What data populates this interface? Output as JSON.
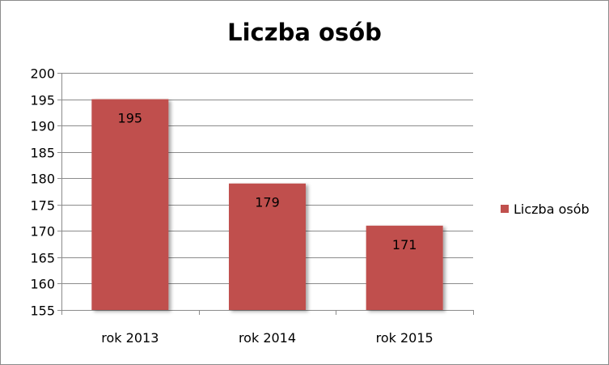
{
  "chart_data": {
    "type": "bar",
    "title": "Liczba osób",
    "categories": [
      "rok 2013",
      "rok 2014",
      "rok 2015"
    ],
    "series": [
      {
        "name": "Liczba osób",
        "values": [
          195,
          179,
          171
        ],
        "color": "#c0504d"
      }
    ],
    "data_labels": [
      "195",
      "179",
      "171"
    ],
    "ylim": [
      155,
      200
    ],
    "y_ticks": [
      "155",
      "160",
      "165",
      "170",
      "175",
      "180",
      "185",
      "190",
      "195",
      "200"
    ],
    "grid": true,
    "legend_position": "right",
    "xlabel": "",
    "ylabel": ""
  }
}
